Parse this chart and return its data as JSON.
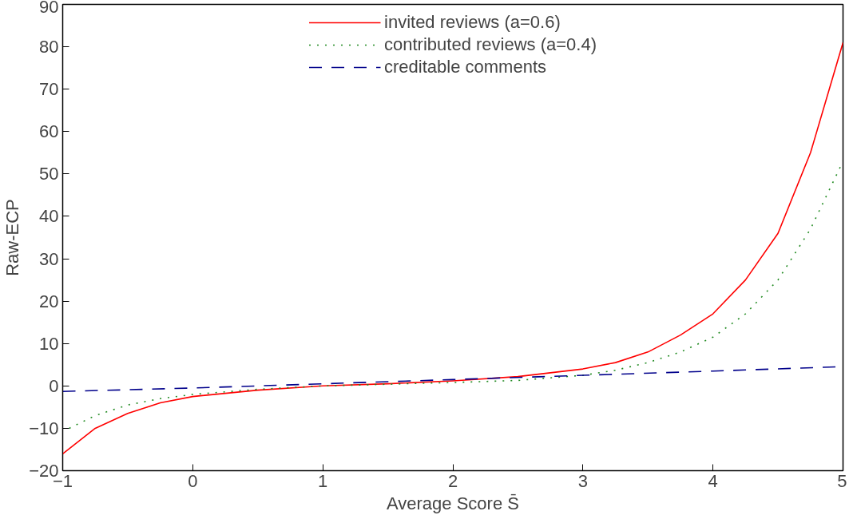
{
  "chart_data": {
    "type": "line",
    "xlabel": "Average Score S̄",
    "ylabel": "Raw-ECP",
    "xlim": [
      -1,
      5
    ],
    "ylim": [
      -20,
      90
    ],
    "xticks": [
      -1,
      0,
      1,
      2,
      3,
      4,
      5
    ],
    "yticks": [
      -20,
      -10,
      0,
      10,
      20,
      30,
      40,
      50,
      60,
      70,
      80,
      90
    ],
    "grid": false,
    "legend": "top",
    "marker": "none",
    "series": [
      {
        "name": "invited reviews (a=0.6)",
        "color": "#ff0000",
        "line_style": "solid",
        "x": [
          -1,
          -0.75,
          -0.5,
          -0.25,
          0,
          0.5,
          1,
          1.5,
          2,
          2.5,
          3,
          3.25,
          3.5,
          3.75,
          4,
          4.25,
          4.5,
          4.75,
          5
        ],
        "values": [
          -16,
          -10,
          -6.5,
          -4,
          -2.5,
          -1,
          0,
          0.5,
          1.2,
          2.2,
          4,
          5.5,
          8,
          12,
          17,
          25,
          36,
          55,
          81
        ]
      },
      {
        "name": "contributed reviews (a=0.4)",
        "color": "#228b22",
        "line_style": "dotted",
        "x": [
          -0.95,
          -0.75,
          -0.5,
          -0.25,
          0,
          0.5,
          1,
          1.5,
          2,
          2.5,
          3,
          3.25,
          3.5,
          3.75,
          4,
          4.25,
          4.5,
          4.75,
          5
        ],
        "values": [
          -10,
          -7,
          -4.5,
          -3,
          -2,
          -0.8,
          0,
          0.4,
          0.8,
          1.3,
          2.5,
          3.7,
          5.5,
          8,
          11.5,
          17,
          25,
          37,
          53
        ]
      },
      {
        "name": "creditable comments",
        "color": "#00008b",
        "line_style": "dashed",
        "x": [
          -1,
          0,
          1,
          2,
          3,
          4,
          4.95
        ],
        "values": [
          -1.3,
          -0.5,
          0.5,
          1.5,
          2.5,
          3.5,
          4.5
        ]
      }
    ]
  }
}
